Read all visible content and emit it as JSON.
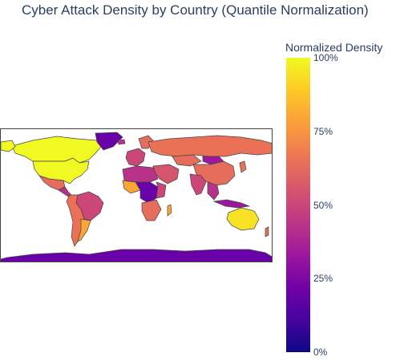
{
  "title": "Cyber Attack Density by Country (Quantile Normalization)",
  "colorbar": {
    "title": "Normalized Density",
    "ticks": [
      "100%",
      "75%",
      "50%",
      "25%",
      "0%"
    ],
    "colors": [
      "#0d0887",
      "#46039f",
      "#7201a8",
      "#9c179e",
      "#bd3786",
      "#d8576b",
      "#ed7953",
      "#fb9f3a",
      "#fdca26",
      "#f0f921"
    ]
  },
  "map": {
    "type": "choropleth",
    "projection": "equirectangular",
    "regions": [
      {
        "name": "Canada",
        "color": "#f0f921",
        "level": 0.95
      },
      {
        "name": "United States",
        "color": "#f0f921",
        "level": 0.97
      },
      {
        "name": "Greenland",
        "color": "#6a00a8",
        "level": 0.2
      },
      {
        "name": "Mexico",
        "color": "#e66c5c",
        "level": 0.6
      },
      {
        "name": "Brazil",
        "color": "#cc4778",
        "level": 0.48
      },
      {
        "name": "Russia",
        "color": "#ea7155",
        "level": 0.66
      },
      {
        "name": "China",
        "color": "#e66c5c",
        "level": 0.6
      },
      {
        "name": "Mongolia",
        "color": "#9c179e",
        "level": 0.3
      },
      {
        "name": "Australia",
        "color": "#f7e225",
        "level": 0.9
      },
      {
        "name": "Antarctica",
        "color": "#6a00a8",
        "level": 0.2
      },
      {
        "name": "Saudi Arabia",
        "color": "#d5546e",
        "level": 0.52
      },
      {
        "name": "India",
        "color": "#cc4778",
        "level": 0.48
      }
    ]
  }
}
